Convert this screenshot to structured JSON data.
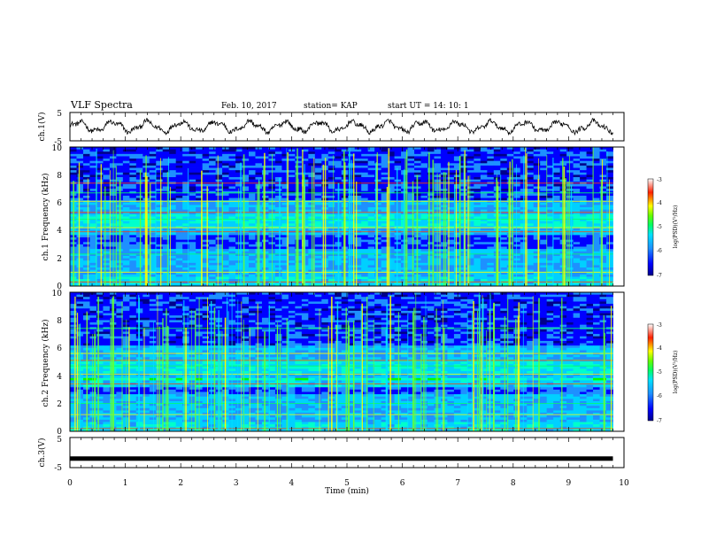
{
  "header": {
    "title": "VLF Spectra",
    "date": "Feb. 10, 2017",
    "station": "station= KAP",
    "start_ut": "start  UT =   14: 10: 1"
  },
  "colors": {
    "spectrogram_colormap": [
      "#00008b",
      "#0000ff",
      "#1e90ff",
      "#00d0ff",
      "#00ffcc",
      "#00ff00",
      "#ffff00",
      "#ff0000",
      "#ffffff"
    ]
  },
  "chart_data": [
    {
      "type": "line",
      "ylabel": "ch.1(V)",
      "yticks": [
        "5",
        "-5"
      ],
      "ylim": [
        -5,
        5
      ],
      "xlim": [
        0,
        10
      ],
      "data_extent": [
        0,
        9.8
      ],
      "series": [
        {
          "description_values": "oscillating signal roughly between -3 and 3 V with ~0.6 min period"
        }
      ]
    },
    {
      "type": "heatmap",
      "ylabel": "ch.1 Frequency (kHz)",
      "yticks": [
        "0",
        "2",
        "4",
        "6",
        "8",
        "10"
      ],
      "ylim": [
        0,
        10
      ],
      "xlim": [
        0,
        10
      ],
      "data_extent": [
        0,
        9.8
      ],
      "colorbar": {
        "label": "log(PSD)(V²/Hz)",
        "ticks": [
          "-3",
          "-4",
          "-5",
          "-6",
          "-7"
        ],
        "range": [
          -7,
          -3
        ]
      }
    },
    {
      "type": "heatmap",
      "ylabel": "ch.2 Frequency (kHz)",
      "yticks": [
        "0",
        "2",
        "4",
        "6",
        "8",
        "10"
      ],
      "ylim": [
        0,
        10
      ],
      "xlim": [
        0,
        10
      ],
      "data_extent": [
        0,
        9.8
      ],
      "colorbar": {
        "label": "log(PSD)(V²/Hz)",
        "ticks": [
          "-3",
          "-4",
          "-5",
          "-6",
          "-7"
        ],
        "range": [
          -7,
          -3
        ]
      }
    },
    {
      "type": "line",
      "ylabel": "ch.3(V)",
      "yticks": [
        "5",
        "-5"
      ],
      "ylim": [
        -5,
        5
      ],
      "xlim": [
        0,
        10
      ],
      "data_extent": [
        0,
        9.8
      ],
      "series": [
        {
          "values_constant": -2
        }
      ]
    }
  ],
  "xaxis": {
    "label": "Time  (min)",
    "ticks": [
      "0",
      "1",
      "2",
      "3",
      "4",
      "5",
      "6",
      "7",
      "8",
      "9",
      "10"
    ]
  }
}
